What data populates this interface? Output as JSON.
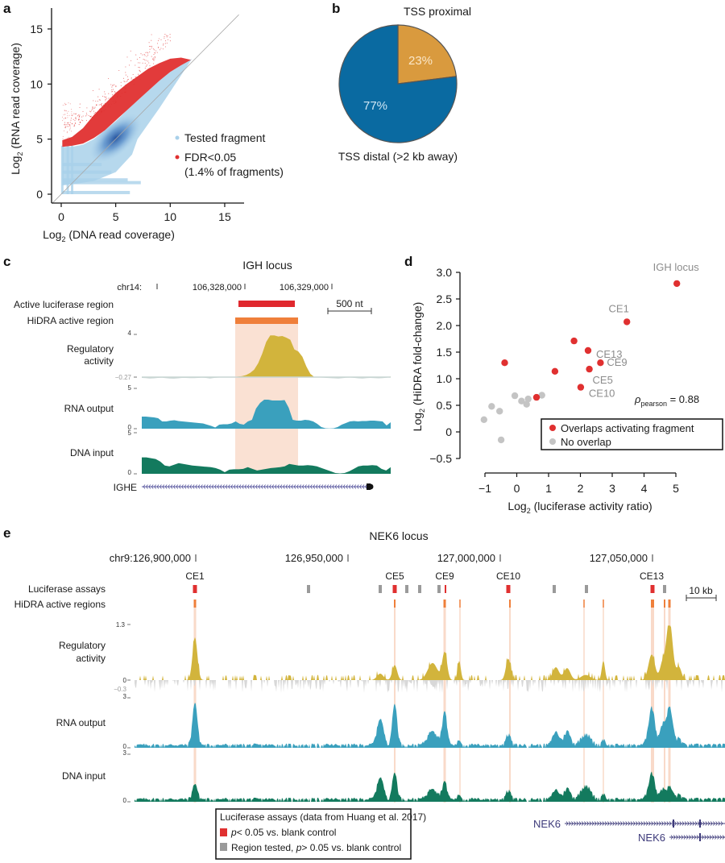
{
  "figure": {
    "panel_labels": [
      "a",
      "b",
      "c",
      "d",
      "e"
    ]
  },
  "chart_data": [
    {
      "panel": "a",
      "type": "scatter",
      "title": "",
      "xlabel": "Log2 (DNA read coverage)",
      "xlabel_main": "Log",
      "xlabel_sub": "2",
      "xlabel_rest": " (DNA read coverage)",
      "ylabel_main": "Log",
      "ylabel_sub": "2",
      "ylabel_rest": " (RNA read coverage)",
      "ylabel": "Log2 (RNA read coverage)",
      "xlim": [
        -0.8,
        16.8
      ],
      "ylim": [
        -0.8,
        16.8
      ],
      "xticks": [
        0,
        5,
        10,
        15
      ],
      "yticks": [
        0,
        5,
        10,
        15
      ],
      "diagonal": "y = x",
      "legend": [
        {
          "label": "Tested fragment",
          "color": "#a9d1ea"
        },
        {
          "label": "FDR<0.05",
          "color": "#e03030"
        },
        {
          "label": "(1.4% of fragments)",
          "color": ""
        }
      ],
      "series": [
        {
          "name": "Tested fragment",
          "color": "#a9d1ea",
          "density_peak": [
            5.0,
            5.0
          ],
          "density_color": "#1f4e9c"
        },
        {
          "name": "FDR<0.05",
          "color": "#e03030",
          "fraction_percent": 1.4
        }
      ]
    },
    {
      "panel": "b",
      "type": "pie",
      "slices": [
        {
          "label": "TSS proximal",
          "value": 23,
          "text": "23%",
          "color": "#d99a3e"
        },
        {
          "label": "TSS distal (>2 kb away)",
          "value": 77,
          "text": "77%",
          "color": "#0a6aa1"
        }
      ]
    },
    {
      "panel": "c",
      "type": "area",
      "title": "IGH locus",
      "chrom": "chr14:",
      "coords": [
        "106,328,000",
        "106,329,000"
      ],
      "scale_bar": "500 nt",
      "region_labels": [
        "Active luciferase region",
        "HiDRA active region"
      ],
      "tracks": [
        {
          "name": "Regulatory activity",
          "name_lines": [
            "Regulatory",
            "activity"
          ],
          "max": "4",
          "min": "−0.27",
          "color": "#d2b43c",
          "neg_color": "#c9d6d4",
          "values": [
            -0.05,
            -0.06,
            -0.08,
            -0.07,
            -0.05,
            -0.04,
            -0.06,
            -0.08,
            -0.09,
            -0.07,
            -0.05,
            -0.05,
            -0.06,
            -0.06,
            -0.05,
            -0.04,
            -0.05,
            -0.08,
            -0.05,
            -0.03,
            -0.02,
            -0.02,
            -0.02,
            0.0,
            0.05,
            0.1,
            0.2,
            0.4,
            0.7,
            1.3,
            2.2,
            3.3,
            3.9,
            3.9,
            3.8,
            3.85,
            3.7,
            3.5,
            2.6,
            2.4,
            1.9,
            1.0,
            0.3,
            0.0,
            -0.02,
            -0.03,
            -0.05,
            -0.06,
            -0.07,
            -0.08,
            -0.06,
            -0.04,
            -0.03,
            -0.05,
            -0.07,
            -0.08,
            -0.06,
            -0.05,
            -0.06,
            -0.07,
            -0.06,
            -0.04,
            0.05
          ]
        },
        {
          "name": "RNA output",
          "max": "5",
          "min": "0",
          "color": "#3aa0bd",
          "values": [
            1.5,
            1.5,
            1.45,
            1.4,
            1.3,
            0.9,
            0.9,
            1.0,
            1.05,
            0.95,
            0.9,
            0.85,
            0.8,
            0.75,
            0.7,
            0.65,
            0.5,
            0.35,
            0.15,
            0.5,
            0.55,
            0.55,
            0.65,
            0.9,
            0.6,
            0.5,
            0.9,
            1.1,
            2.5,
            3.2,
            3.6,
            3.6,
            3.5,
            3.5,
            3.5,
            3.55,
            2.6,
            1.1,
            1.0,
            1.0,
            1.1,
            1.05,
            0.9,
            0.6,
            0.2,
            0.05,
            0.02,
            0.05,
            0.2,
            0.5,
            0.7,
            0.9,
            0.95,
            0.9,
            0.95,
            0.95,
            1.0,
            1.0,
            0.95,
            0.9,
            0.4,
            0.8
          ]
        },
        {
          "name": "DNA input",
          "max": "5",
          "min": "0",
          "color": "#137a5e",
          "values": [
            2.0,
            2.0,
            1.9,
            1.8,
            1.5,
            1.0,
            0.9,
            1.1,
            1.3,
            1.2,
            1.1,
            1.0,
            0.95,
            0.9,
            0.85,
            0.8,
            0.7,
            0.5,
            0.2,
            0.5,
            0.55,
            0.55,
            0.6,
            0.8,
            0.6,
            0.4,
            0.5,
            0.6,
            0.7,
            0.75,
            0.8,
            0.9,
            1.2,
            1.1,
            1.0,
            1.0,
            1.05,
            1.0,
            0.9,
            0.7,
            0.5,
            0.3,
            0.1,
            0.05,
            0.1,
            0.3,
            0.6,
            0.9,
            1.0,
            1.0,
            1.05,
            1.0,
            0.6,
            0.4,
            0.8
          ]
        }
      ],
      "gene": {
        "name": "IGHE",
        "strand": "-",
        "color": "#5b5aa0"
      }
    },
    {
      "panel": "d",
      "type": "scatter",
      "xlabel": "Log2 (luciferase activity ratio)",
      "xlabel_main": "Log",
      "xlabel_sub": "2",
      "xlabel_rest": " (luciferase activity ratio)",
      "ylabel": "Log2 (HiDRA fold-change)",
      "ylabel_main": "Log",
      "ylabel_sub": "2",
      "ylabel_rest": " (HiDRA fold-change)",
      "xlim": [
        -1,
        5
      ],
      "ylim": [
        -0.5,
        3.0
      ],
      "xticks": [
        -1,
        0,
        1,
        2,
        3,
        4,
        5
      ],
      "xtick_labels": [
        "−1",
        "0",
        "1",
        "2",
        "3",
        "4",
        "5"
      ],
      "yticks": [
        -0.5,
        0,
        0.5,
        1.0,
        1.5,
        2.0,
        2.5,
        3.0
      ],
      "ytick_labels": [
        "−0.5",
        "0",
        "0.5",
        "1.0",
        "1.5",
        "2.0",
        "2.5",
        "3.0"
      ],
      "annotation": {
        "rho_symbol": "ρ",
        "rho_sub": "pearson",
        "rho_text": " = 0.88",
        "value": 0.88
      },
      "legend": [
        {
          "label": "Overlaps activating fragment",
          "color": "#e03030"
        },
        {
          "label": "No overlap",
          "color": "#c4c4c4"
        }
      ],
      "series": [
        {
          "name": "Overlaps activating fragment",
          "color": "#e03030",
          "points": [
            {
              "x": 5.03,
              "y": 2.79,
              "label": "IGH locus"
            },
            {
              "x": 3.46,
              "y": 2.07,
              "label": "CE1"
            },
            {
              "x": 1.8,
              "y": 1.71,
              "label": ""
            },
            {
              "x": 2.24,
              "y": 1.53,
              "label": "CE13"
            },
            {
              "x": 2.63,
              "y": 1.3,
              "label": "CE9"
            },
            {
              "x": 2.28,
              "y": 1.18,
              "label": "CE5"
            },
            {
              "x": -0.38,
              "y": 1.3,
              "label": ""
            },
            {
              "x": 1.2,
              "y": 1.14,
              "label": ""
            },
            {
              "x": 2.01,
              "y": 0.84,
              "label": "CE10"
            },
            {
              "x": 0.62,
              "y": 0.65,
              "label": ""
            }
          ]
        },
        {
          "name": "No overlap",
          "color": "#c4c4c4",
          "points": [
            {
              "x": -0.06,
              "y": 0.68
            },
            {
              "x": 0.15,
              "y": 0.58
            },
            {
              "x": 0.36,
              "y": 0.62
            },
            {
              "x": 0.31,
              "y": 0.52
            },
            {
              "x": 0.79,
              "y": 0.69
            },
            {
              "x": -0.79,
              "y": 0.48
            },
            {
              "x": -0.54,
              "y": 0.39
            },
            {
              "x": -1.03,
              "y": 0.23
            },
            {
              "x": -0.49,
              "y": -0.15
            }
          ]
        }
      ]
    },
    {
      "panel": "e",
      "type": "area",
      "title": "NEK6 locus",
      "coords": [
        {
          "label": "chr9:126,900,000",
          "pos": 126900000
        },
        {
          "label": "126,950,000",
          "pos": 126950000
        },
        {
          "label": "127,000,000",
          "pos": 127000000
        },
        {
          "label": "127,050,000",
          "pos": 127050000
        }
      ],
      "scale_bar": "10 kb",
      "row_labels": [
        "Luciferase assays",
        "HiDRA active regions"
      ],
      "ce_labels": [
        "CE1",
        "CE5",
        "CE9",
        "CE10",
        "CE13"
      ],
      "luciferase_sig_color": "#e03030",
      "luciferase_ns_color": "#9a9a9a",
      "hidra_color": "#ef7f3a",
      "tracks": [
        {
          "name": "Regulatory activity",
          "name_lines": [
            "Regulatory",
            "activity"
          ],
          "max": "1.3",
          "zero": "0",
          "min": "−0.3",
          "color": "#d2b43c",
          "neg_color": "#d8d8d8"
        },
        {
          "name": "RNA output",
          "max": "3",
          "min": "0",
          "color": "#3aa0bd"
        },
        {
          "name": "DNA input",
          "max": "3",
          "min": "0",
          "color": "#137a5e"
        }
      ],
      "legend": {
        "title": "Luciferase assays (data from Huang et al. 2017)",
        "items": [
          {
            "label_italic": "p",
            "label": "< 0.05 vs. blank control",
            "color": "#e03030"
          },
          {
            "label_pre": "Region tested, ",
            "label_italic": "p",
            "label": "> 0.05 vs. blank control",
            "color": "#9a9a9a"
          }
        ]
      },
      "genes": [
        {
          "name": "NEK6",
          "strand": "+",
          "color": "#3d3a7a"
        },
        {
          "name": "NEK6",
          "strand": "+",
          "color": "#3d3a7a"
        }
      ]
    }
  ]
}
